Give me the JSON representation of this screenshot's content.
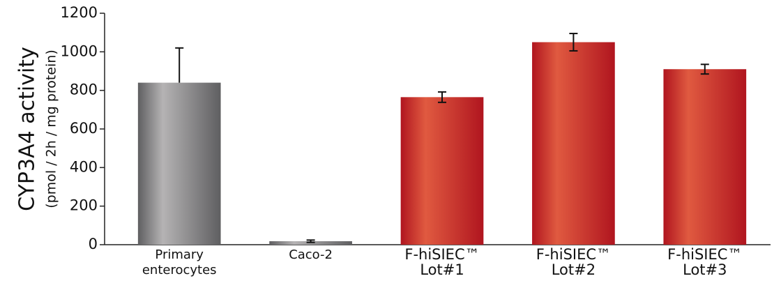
{
  "chart_data": {
    "type": "bar",
    "y_label": [
      "CYP3A4 activity",
      "(pmol / 2h / mg protein)"
    ],
    "categories": [
      [
        "Primary",
        "enterocytes"
      ],
      [
        "Caco-2"
      ],
      [
        "F-hiSIEC™",
        "Lot#1"
      ],
      [
        "F-hiSIEC™",
        "Lot#2"
      ],
      [
        "F-hiSIEC™",
        "Lot#3"
      ]
    ],
    "values": [
      840,
      18,
      765,
      1050,
      910
    ],
    "errors": [
      180,
      6,
      27,
      45,
      25
    ],
    "error_one_sided": [
      true,
      false,
      false,
      false,
      false
    ],
    "colors": [
      "#5f5f61",
      "#5f5f61",
      "#b0151f",
      "#b0151f",
      "#b0151f"
    ],
    "highlight_colors": [
      "#b5b3b4",
      "#b5b3b4",
      "#e05a40",
      "#e05a40",
      "#e05a40"
    ],
    "ylim": [
      0,
      1200
    ],
    "yticks": [
      0,
      200,
      400,
      600,
      800,
      1000,
      1200
    ],
    "grid": false
  }
}
